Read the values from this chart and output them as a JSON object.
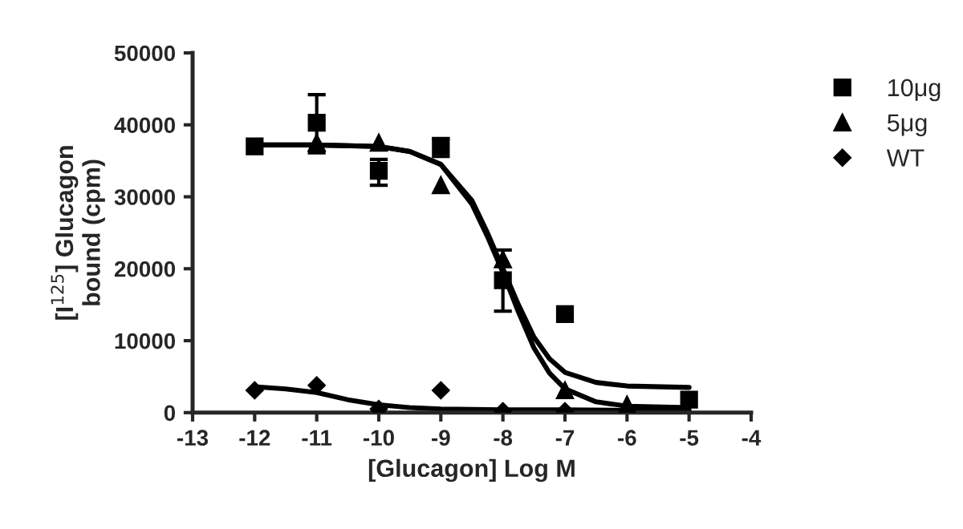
{
  "chart_data": {
    "type": "scatter",
    "xlabel": "[Glucagon] Log M",
    "ylabel": "[I$^{125}$] Glucagon\nbound (cpm)",
    "x": [
      -12,
      -11,
      -10,
      -9,
      -8,
      -7,
      -6,
      -5
    ],
    "xlim": [
      -13,
      -4
    ],
    "xticks": [
      {
        "value": -13,
        "label": "-13"
      },
      {
        "value": -12,
        "label": "-12"
      },
      {
        "value": -11,
        "label": "-11"
      },
      {
        "value": -10,
        "label": "-10"
      },
      {
        "value": -9,
        "label": "-9"
      },
      {
        "value": -8,
        "label": "-8"
      },
      {
        "value": -7,
        "label": "-7"
      },
      {
        "value": -6,
        "label": "-6"
      },
      {
        "value": -5,
        "label": "-5"
      },
      {
        "value": -4,
        "label": "-4"
      }
    ],
    "ylim": [
      0,
      50000
    ],
    "yticks": [
      0,
      10000,
      20000,
      30000,
      40000,
      50000
    ],
    "grid": false,
    "legend": "right",
    "series": [
      {
        "name": "10μg",
        "color": "#000000",
        "marker": "square",
        "values": [
          37000,
          40300,
          33600,
          37000,
          18400,
          13700,
          null,
          1800
        ],
        "errors": [
          null,
          [
            36100,
            44200
          ],
          [
            31600,
            35200
          ],
          [
            35600,
            38100
          ],
          [
            14100,
            22600
          ],
          null,
          null,
          null
        ]
      },
      {
        "name": "5μg",
        "color": "#000000",
        "marker": "triangle",
        "values": [
          null,
          37500,
          37500,
          31600,
          21300,
          3100,
          1100,
          null
        ]
      },
      {
        "name": "WT",
        "color": "#000000",
        "marker": "diamond",
        "values": [
          3100,
          3800,
          500,
          3100,
          200,
          200,
          null,
          null
        ]
      },
      {
        "type": "line",
        "color": "#000000",
        "x": [
          -12,
          -11,
          -10,
          -9.5,
          -9,
          -8.5,
          -8.25,
          -8,
          -7.75,
          -7.5,
          -7.25,
          -7,
          -6.5,
          -6,
          -5
        ],
        "values": [
          37200,
          37200,
          37000,
          36300,
          34500,
          29500,
          25000,
          20000,
          15000,
          10500,
          7500,
          5600,
          4200,
          3700,
          3500
        ]
      },
      {
        "type": "line",
        "color": "#000000",
        "x": [
          -12,
          -11,
          -10,
          -9.5,
          -9,
          -8.5,
          -8.25,
          -8,
          -7.75,
          -7.5,
          -7.25,
          -7,
          -6.5,
          -6,
          -5
        ],
        "values": [
          37200,
          37200,
          37000,
          36300,
          34500,
          29000,
          24500,
          19500,
          14000,
          9000,
          5500,
          3300,
          1500,
          900,
          700
        ]
      },
      {
        "type": "line",
        "color": "#000000",
        "x": [
          -12,
          -11.5,
          -11,
          -10.5,
          -10,
          -9.5,
          -9,
          -8,
          -7,
          -6,
          -5
        ],
        "values": [
          3600,
          3300,
          2800,
          1800,
          1100,
          700,
          500,
          400,
          400,
          300,
          300
        ]
      }
    ]
  }
}
